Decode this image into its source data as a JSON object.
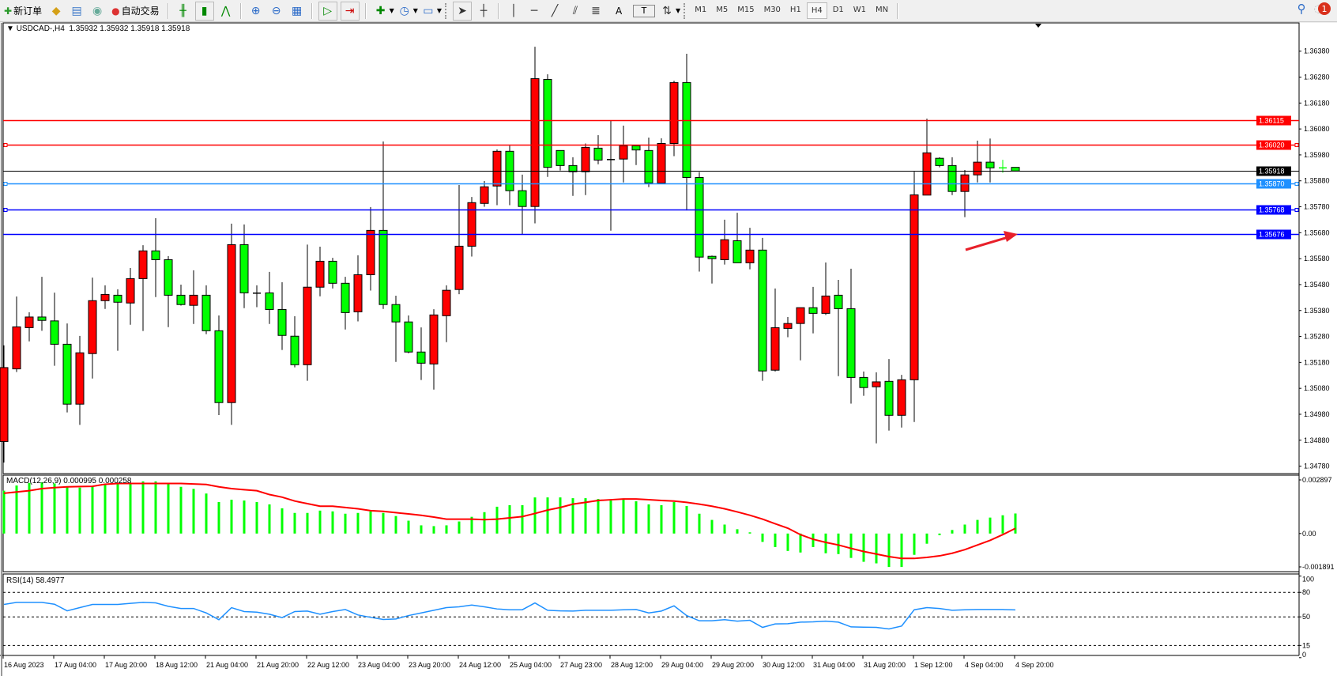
{
  "toolbar": {
    "new_order_label": "新订单",
    "auto_trading_label": "自动交易",
    "text_tool_label": "A",
    "text_label_tool_label": "T",
    "timeframes": [
      "M1",
      "M5",
      "M15",
      "M30",
      "H1",
      "H4",
      "D1",
      "W1",
      "MN"
    ],
    "selected_timeframe": "H4",
    "notification_count": "1"
  },
  "chart_header": {
    "symbol": "USDCAD-,H4",
    "ohlc": "1.35932 1.35932 1.35918 1.35918"
  },
  "colors": {
    "bull_body": "#ff0000",
    "bear_body": "#00ff00",
    "candle_outline": "#000000",
    "macd_histogram": "#00ff00",
    "macd_signal": "#ff0000",
    "rsi_line": "#1e90ff",
    "annotation_arrow": "#e8202a"
  },
  "chart_data": [
    {
      "type": "candlestick",
      "symbol": "USDCAD-",
      "timeframe": "H4",
      "ylim": [
        1.34751,
        1.36486
      ],
      "y_ticks": [
        "1.36380",
        "1.36280",
        "1.36180",
        "1.36080",
        "1.35980",
        "1.35880",
        "1.35780",
        "1.35680",
        "1.35580",
        "1.35480",
        "1.35380",
        "1.35280",
        "1.35180",
        "1.35080",
        "1.34980",
        "1.34880",
        "1.34780"
      ],
      "x_tick_labels": [
        "16 Aug 2023",
        "17 Aug 04:00",
        "17 Aug 20:00",
        "18 Aug 12:00",
        "21 Aug 04:00",
        "21 Aug 20:00",
        "22 Aug 12:00",
        "23 Aug 04:00",
        "23 Aug 20:00",
        "24 Aug 12:00",
        "25 Aug 04:00",
        "27 Aug 23:00",
        "28 Aug 12:00",
        "29 Aug 04:00",
        "29 Aug 20:00",
        "30 Aug 12:00",
        "31 Aug 04:00",
        "31 Aug 20:00",
        "1 Sep 12:00",
        "4 Sep 04:00",
        "4 Sep 20:00"
      ],
      "x_tick_every_bars": 4,
      "ohlc": [
        [
          1.34875,
          1.35246,
          1.34794,
          1.3516
        ],
        [
          1.35155,
          1.35434,
          1.35143,
          1.35317
        ],
        [
          1.35314,
          1.35373,
          1.35261,
          1.35355
        ],
        [
          1.35355,
          1.3551,
          1.35302,
          1.35342
        ],
        [
          1.3534,
          1.35449,
          1.35167,
          1.3525
        ],
        [
          1.3525,
          1.3533,
          1.34987,
          1.35019
        ],
        [
          1.35019,
          1.35282,
          1.34939,
          1.35217
        ],
        [
          1.35214,
          1.35507,
          1.35118,
          1.35418
        ],
        [
          1.35418,
          1.35477,
          1.35386,
          1.35442
        ],
        [
          1.35439,
          1.35462,
          1.35225,
          1.35412
        ],
        [
          1.35409,
          1.35544,
          1.35325,
          1.35503
        ],
        [
          1.35503,
          1.35632,
          1.35301,
          1.3561
        ],
        [
          1.3561,
          1.35736,
          1.35432,
          1.35576
        ],
        [
          1.35576,
          1.3559,
          1.35316,
          1.35439
        ],
        [
          1.35439,
          1.3548,
          1.35399,
          1.35403
        ],
        [
          1.354,
          1.35535,
          1.35328,
          1.35439
        ],
        [
          1.35439,
          1.35477,
          1.35289,
          1.35302
        ],
        [
          1.35302,
          1.35361,
          1.34977,
          1.35025
        ],
        [
          1.35025,
          1.35715,
          1.34939,
          1.35634
        ],
        [
          1.35634,
          1.35712,
          1.35389,
          1.35448
        ],
        [
          1.35447,
          1.35477,
          1.35393,
          1.35447
        ],
        [
          1.35448,
          1.35529,
          1.35328,
          1.35384
        ],
        [
          1.35384,
          1.35489,
          1.35228,
          1.35284
        ],
        [
          1.35281,
          1.35358,
          1.35161,
          1.35171
        ],
        [
          1.35171,
          1.35634,
          1.35109,
          1.3547
        ],
        [
          1.3547,
          1.35626,
          1.35435,
          1.3557
        ],
        [
          1.3557,
          1.35583,
          1.35465,
          1.35485
        ],
        [
          1.35485,
          1.3551,
          1.35307,
          1.35372
        ],
        [
          1.35375,
          1.35593,
          1.35338,
          1.35518
        ],
        [
          1.35518,
          1.35779,
          1.35457,
          1.35689
        ],
        [
          1.35689,
          1.36032,
          1.35386,
          1.35403
        ],
        [
          1.35403,
          1.35437,
          1.35182,
          1.35336
        ],
        [
          1.35336,
          1.35361,
          1.35215,
          1.3522
        ],
        [
          1.3522,
          1.35315,
          1.35112,
          1.35177
        ],
        [
          1.35174,
          1.35385,
          1.35075,
          1.35363
        ],
        [
          1.3536,
          1.35477,
          1.35258,
          1.35458
        ],
        [
          1.35461,
          1.35864,
          1.35443,
          1.35628
        ],
        [
          1.35628,
          1.35818,
          1.35588,
          1.35796
        ],
        [
          1.35793,
          1.35879,
          1.3578,
          1.35857
        ],
        [
          1.3586,
          1.36001,
          1.35786,
          1.35994
        ],
        [
          1.35994,
          1.36016,
          1.35786,
          1.35842
        ],
        [
          1.35842,
          1.35904,
          1.35675,
          1.35781
        ],
        [
          1.35781,
          1.36397,
          1.35716,
          1.36274
        ],
        [
          1.36271,
          1.36291,
          1.35895,
          1.35932
        ],
        [
          1.35997,
          1.35997,
          1.3592,
          1.35939
        ],
        [
          1.35939,
          1.35971,
          1.35822,
          1.35915
        ],
        [
          1.35915,
          1.36024,
          1.35825,
          1.36009
        ],
        [
          1.36006,
          1.36056,
          1.35944,
          1.3596
        ],
        [
          1.35962,
          1.36111,
          1.35688,
          1.35962
        ],
        [
          1.35964,
          1.36093,
          1.35874,
          1.36015
        ],
        [
          1.36015,
          1.36015,
          1.35941,
          1.35999
        ],
        [
          1.35997,
          1.36047,
          1.35856,
          1.35872
        ],
        [
          1.35871,
          1.36044,
          1.35871,
          1.36024
        ],
        [
          1.36024,
          1.36266,
          1.35975,
          1.36259
        ],
        [
          1.36259,
          1.3637,
          1.35766,
          1.35893
        ],
        [
          1.35893,
          1.35914,
          1.3553,
          1.35586
        ],
        [
          1.35589,
          1.35592,
          1.35484,
          1.3558
        ],
        [
          1.35576,
          1.3573,
          1.35557,
          1.35653
        ],
        [
          1.35649,
          1.35757,
          1.35564,
          1.35564
        ],
        [
          1.35564,
          1.35699,
          1.35539,
          1.35613
        ],
        [
          1.35613,
          1.3566,
          1.35109,
          1.35147
        ],
        [
          1.3515,
          1.35465,
          1.35145,
          1.35314
        ],
        [
          1.35311,
          1.35355,
          1.35277,
          1.3533
        ],
        [
          1.3533,
          1.35391,
          1.35188,
          1.35391
        ],
        [
          1.35391,
          1.35471,
          1.35292,
          1.35369
        ],
        [
          1.35369,
          1.35565,
          1.35363,
          1.35436
        ],
        [
          1.35439,
          1.35498,
          1.35127,
          1.35387
        ],
        [
          1.35387,
          1.35541,
          1.35021,
          1.35122
        ],
        [
          1.35122,
          1.35145,
          1.35051,
          1.35083
        ],
        [
          1.35086,
          1.35142,
          1.34868,
          1.35105
        ],
        [
          1.35107,
          1.35193,
          1.34917,
          1.34976
        ],
        [
          1.34976,
          1.35132,
          1.34929,
          1.35113
        ],
        [
          1.35113,
          1.35915,
          1.3495,
          1.35826
        ],
        [
          1.35825,
          1.3612,
          1.35825,
          1.35988
        ],
        [
          1.35967,
          1.35971,
          1.35932,
          1.35939
        ],
        [
          1.35939,
          1.35971,
          1.35825,
          1.35839
        ],
        [
          1.35839,
          1.35922,
          1.3574,
          1.35903
        ],
        [
          1.35903,
          1.36035,
          1.35874,
          1.35952
        ],
        [
          1.35952,
          1.36043,
          1.35874,
          1.3593
        ],
        [
          1.3593,
          1.35961,
          1.35911,
          1.3593
        ],
        [
          1.35932,
          1.35932,
          1.35918,
          1.35918
        ]
      ],
      "horizontal_levels": [
        {
          "price": "1.36115",
          "color": "#ff0000",
          "selected": false
        },
        {
          "price": "1.36020",
          "color": "#ff0000",
          "selected": true
        },
        {
          "price": "1.35918",
          "color": "#000000",
          "selected": false
        },
        {
          "price": "1.35870",
          "color": "#1e90ff",
          "selected": true
        },
        {
          "price": "1.35768",
          "color": "#0000ff",
          "selected": true
        },
        {
          "price": "1.35676",
          "color": "#0000ff",
          "selected": false
        }
      ]
    },
    {
      "type": "bar",
      "name": "MACD(12,26,9)",
      "label": "MACD(12,26,9) 0.000995 0.000258",
      "ylim": [
        -0.001891,
        0.002897
      ],
      "y_ticks": [
        "0.002897",
        "0.00",
        "-0.001891"
      ],
      "histogram": [
        0.002127,
        0.002384,
        0.002512,
        0.002538,
        0.002486,
        0.002319,
        0.002281,
        0.002358,
        0.002435,
        0.002512,
        0.002461,
        0.002589,
        0.002589,
        0.002448,
        0.002319,
        0.002217,
        0.001986,
        0.001562,
        0.001678,
        0.001639,
        0.001562,
        0.001447,
        0.001254,
        0.001023,
        0.001023,
        0.001138,
        0.0011,
        0.000984,
        0.001023,
        0.0011,
        0.001023,
        0.000869,
        0.000638,
        0.000407,
        0.000368,
        0.000407,
        0.000599,
        0.00083,
        0.001061,
        0.001331,
        0.001408,
        0.001408,
        0.001793,
        0.001793,
        0.001793,
        0.001755,
        0.001755,
        0.001716,
        0.001639,
        0.001678,
        0.001601,
        0.001447,
        0.001408,
        0.001562,
        0.001369,
        0.000984,
        0.000676,
        0.000445,
        0.000214,
        6e-05,
        -0.000415,
        -0.000671,
        -0.000864,
        -0.000941,
        -0.000671,
        -0.000979,
        -0.001018,
        -0.001211,
        -0.001403,
        -0.00148,
        -0.00166,
        -0.00166,
        -0.001056,
        -0.000505,
        -8.1e-05,
        0.000176,
        0.000445,
        0.000676,
        0.000792,
        0.000907,
        0.000995
      ],
      "signal": [
        0.001999,
        0.002063,
        0.002127,
        0.00223,
        0.002281,
        0.002319,
        0.002332,
        0.002345,
        0.002448,
        0.002486,
        0.002486,
        0.002486,
        0.002486,
        0.002486,
        0.002486,
        0.002461,
        0.002435,
        0.002319,
        0.00223,
        0.002178,
        0.002127,
        0.001934,
        0.001806,
        0.001613,
        0.001485,
        0.001357,
        0.001357,
        0.001292,
        0.001228,
        0.001138,
        0.0011,
        0.001036,
        0.000972,
        0.000907,
        0.000818,
        0.000715,
        0.000715,
        0.000715,
        0.000689,
        0.000715,
        0.000779,
        0.000843,
        0.000997,
        0.001164,
        0.001292,
        0.001459,
        0.001549,
        0.001639,
        0.001678,
        0.001716,
        0.001716,
        0.001678,
        0.001639,
        0.001613,
        0.001549,
        0.001459,
        0.001357,
        0.001228,
        0.001074,
        0.000907,
        0.000715,
        0.000484,
        0.000266,
        -5.5e-05,
        -0.000286,
        -0.00044,
        -0.000569,
        -0.000736,
        -0.00089,
        -0.001018,
        -0.001146,
        -0.001236,
        -0.001236,
        -0.001185,
        -0.001108,
        -0.000979,
        -0.0008,
        -0.000569,
        -0.000338,
        -5.5e-05,
        0.000258
      ]
    },
    {
      "type": "line",
      "name": "RSI(14)",
      "label": "RSI(14) 58.4977",
      "ylim": [
        0,
        100
      ],
      "y_ticks": [
        "100",
        "80",
        "50",
        "15",
        "0"
      ],
      "levels": [
        80,
        50,
        15
      ],
      "values": [
        65.2,
        67.7,
        67.7,
        67.7,
        65.5,
        57.4,
        61.3,
        65.2,
        65.2,
        65.2,
        66.5,
        67.7,
        67.1,
        62.9,
        60.3,
        60.3,
        54.8,
        46.5,
        61.3,
        56.5,
        55.8,
        53.2,
        49.0,
        56.5,
        57.1,
        53.2,
        56.5,
        59.0,
        52.3,
        49.4,
        46.8,
        47.4,
        51.6,
        54.8,
        58.1,
        61.3,
        62.3,
        64.5,
        62.3,
        59.7,
        58.7,
        58.7,
        67.1,
        58.1,
        57.4,
        57.1,
        58.1,
        58.1,
        58.1,
        58.7,
        59.0,
        54.8,
        57.1,
        63.5,
        51.6,
        45.2,
        45.2,
        46.5,
        44.8,
        45.8,
        37.1,
        41.3,
        41.6,
        43.5,
        43.9,
        44.8,
        43.5,
        37.7,
        37.4,
        37.1,
        35.2,
        38.7,
        58.7,
        61.3,
        60.3,
        58.1,
        58.7,
        59.0,
        59.0,
        59.0,
        58.4977
      ]
    }
  ]
}
